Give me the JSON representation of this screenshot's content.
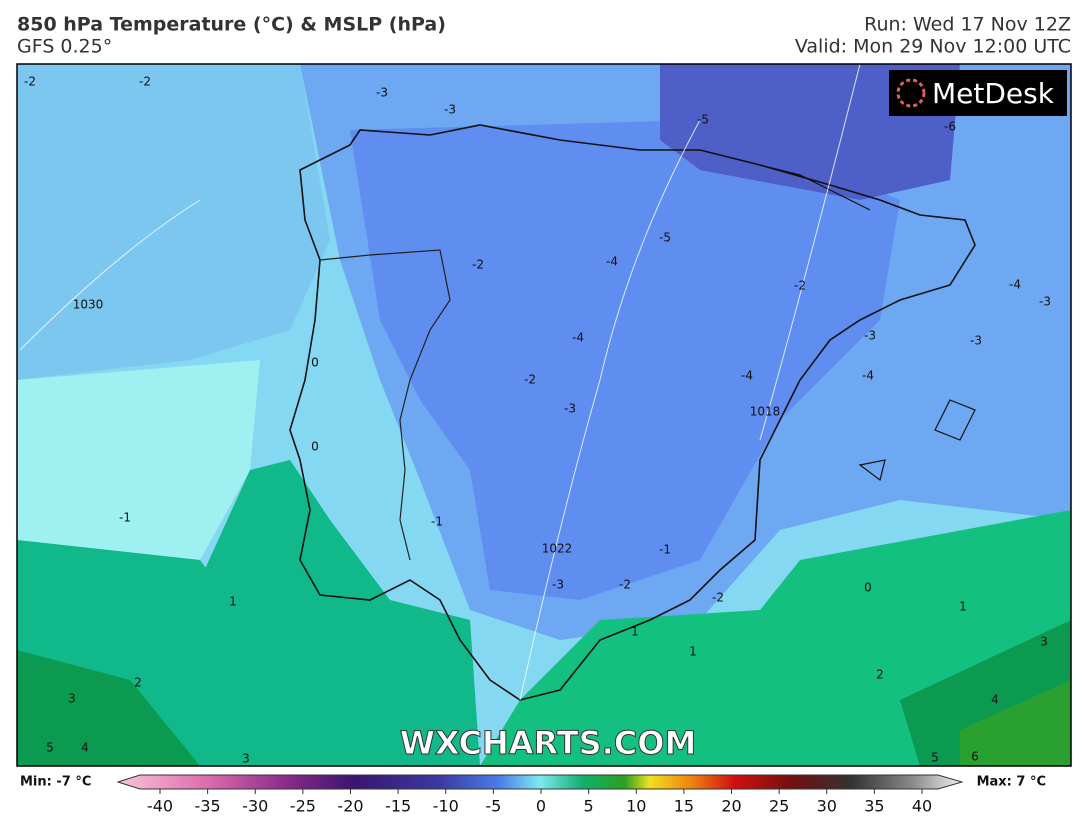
{
  "header": {
    "title": "850 hPa Temperature (°C) & MSLP (hPa)",
    "subtitle": "GFS 0.25°",
    "run": "Run: Wed 17 Nov 12Z",
    "valid": "Valid: Mon 29 Nov 12:00 UTC"
  },
  "logo": "MetDesk",
  "watermark": "WXCHARTS.COM",
  "legend": {
    "min_label": "Min: -7 °C",
    "max_label": "Max: 7 °C",
    "ticks": [
      -40,
      -35,
      -30,
      -25,
      -20,
      -15,
      -10,
      -5,
      0,
      5,
      10,
      15,
      20,
      25,
      30,
      35,
      40
    ]
  },
  "contour_labels": [
    "-2",
    "-2",
    "-3",
    "-3",
    "-5",
    "-6",
    "-5",
    "-4",
    "-2",
    "-4",
    "-2",
    "-3",
    "-4",
    "-3",
    "-3",
    "-4",
    "-3",
    "-2",
    "-4",
    "-1",
    "-1",
    "-1",
    "0",
    "0",
    "0",
    "1",
    "1",
    "1",
    "1",
    "2",
    "2",
    "3",
    "3",
    "3",
    "4",
    "4",
    "5",
    "5",
    "6",
    "-3",
    "-2",
    "-2",
    "1030",
    "1018",
    "1022"
  ]
}
